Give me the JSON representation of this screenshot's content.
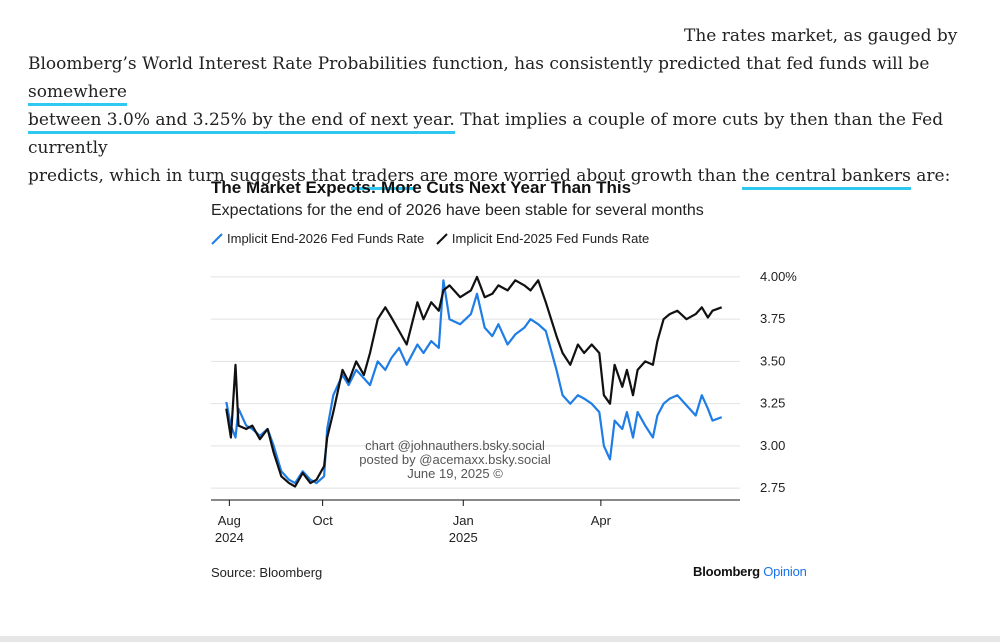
{
  "article": {
    "p1": "The rates market, as gauged by",
    "p2a": "Bloomberg’s World Interest Rate Probabilities function, has consistently predicted that fed funds will be ",
    "p2_hl": "somewhere",
    "p3_hl": "between 3.0% and 3.25% by the end of next year.",
    "p3b": " That implies a couple of more cuts by then than the Fed currently",
    "p4a": "predicts, which in turn suggests that ",
    "p4_hl1": "traders",
    "p4b": " are more worried about growth than ",
    "p4_hl2": "the central bankers",
    "p4c": " are:",
    "highlight_color": "#2ec8f0"
  },
  "chart_data": {
    "type": "line",
    "title": "The Market Expects: More Cuts Next Year Than This",
    "subtitle": "Expectations for the end of 2026 have been stable for several months",
    "y_ticks": [
      {
        "value": 4.0,
        "label": "4.00%"
      },
      {
        "value": 3.75,
        "label": "3.75"
      },
      {
        "value": 3.5,
        "label": "3.50"
      },
      {
        "value": 3.25,
        "label": "3.25"
      },
      {
        "value": 3.0,
        "label": "3.00"
      },
      {
        "value": 2.75,
        "label": "2.75"
      }
    ],
    "ylim": [
      2.68,
      4.1
    ],
    "x_ticks": [
      {
        "date": "2024-08-01",
        "line1": "Aug",
        "line2": "2024"
      },
      {
        "date": "2024-10-01",
        "line1": "Oct",
        "line2": ""
      },
      {
        "date": "2025-01-01",
        "line1": "Jan",
        "line2": "2025"
      },
      {
        "date": "2025-04-01",
        "line1": "Apr",
        "line2": ""
      }
    ],
    "xlim": [
      "2024-07-20",
      "2025-07-01"
    ],
    "grid": true,
    "legend_position": "top-left",
    "series": [
      {
        "name": "Implicit End-2026 Fed Funds Rate",
        "color": "#1f7de6",
        "points": [
          [
            "2024-07-30",
            3.26
          ],
          [
            "2024-08-02",
            3.12
          ],
          [
            "2024-08-05",
            3.05
          ],
          [
            "2024-08-07",
            3.22
          ],
          [
            "2024-08-12",
            3.12
          ],
          [
            "2024-08-16",
            3.1
          ],
          [
            "2024-08-21",
            3.06
          ],
          [
            "2024-08-26",
            3.1
          ],
          [
            "2024-08-30",
            3.0
          ],
          [
            "2024-09-04",
            2.85
          ],
          [
            "2024-09-09",
            2.8
          ],
          [
            "2024-09-13",
            2.78
          ],
          [
            "2024-09-18",
            2.85
          ],
          [
            "2024-09-23",
            2.8
          ],
          [
            "2024-09-27",
            2.78
          ],
          [
            "2024-10-02",
            2.82
          ],
          [
            "2024-10-04",
            3.1
          ],
          [
            "2024-10-08",
            3.3
          ],
          [
            "2024-10-14",
            3.42
          ],
          [
            "2024-10-18",
            3.36
          ],
          [
            "2024-10-23",
            3.45
          ],
          [
            "2024-10-28",
            3.4
          ],
          [
            "2024-11-01",
            3.36
          ],
          [
            "2024-11-06",
            3.5
          ],
          [
            "2024-11-11",
            3.45
          ],
          [
            "2024-11-15",
            3.52
          ],
          [
            "2024-11-20",
            3.58
          ],
          [
            "2024-11-25",
            3.48
          ],
          [
            "2024-12-02",
            3.6
          ],
          [
            "2024-12-06",
            3.55
          ],
          [
            "2024-12-11",
            3.62
          ],
          [
            "2024-12-16",
            3.58
          ],
          [
            "2024-12-19",
            3.98
          ],
          [
            "2024-12-23",
            3.75
          ],
          [
            "2024-12-30",
            3.72
          ],
          [
            "2025-01-06",
            3.78
          ],
          [
            "2025-01-10",
            3.9
          ],
          [
            "2025-01-15",
            3.7
          ],
          [
            "2025-01-20",
            3.65
          ],
          [
            "2025-01-24",
            3.72
          ],
          [
            "2025-01-30",
            3.6
          ],
          [
            "2025-02-04",
            3.66
          ],
          [
            "2025-02-10",
            3.7
          ],
          [
            "2025-02-14",
            3.75
          ],
          [
            "2025-02-19",
            3.72
          ],
          [
            "2025-02-24",
            3.68
          ],
          [
            "2025-03-03",
            3.45
          ],
          [
            "2025-03-07",
            3.3
          ],
          [
            "2025-03-12",
            3.25
          ],
          [
            "2025-03-17",
            3.3
          ],
          [
            "2025-03-21",
            3.28
          ],
          [
            "2025-03-26",
            3.25
          ],
          [
            "2025-03-31",
            3.2
          ],
          [
            "2025-04-03",
            3.0
          ],
          [
            "2025-04-07",
            2.92
          ],
          [
            "2025-04-10",
            3.15
          ],
          [
            "2025-04-15",
            3.1
          ],
          [
            "2025-04-18",
            3.2
          ],
          [
            "2025-04-22",
            3.05
          ],
          [
            "2025-04-25",
            3.2
          ],
          [
            "2025-04-30",
            3.12
          ],
          [
            "2025-05-05",
            3.05
          ],
          [
            "2025-05-08",
            3.18
          ],
          [
            "2025-05-12",
            3.25
          ],
          [
            "2025-05-16",
            3.28
          ],
          [
            "2025-05-21",
            3.3
          ],
          [
            "2025-05-27",
            3.24
          ],
          [
            "2025-06-02",
            3.18
          ],
          [
            "2025-06-06",
            3.3
          ],
          [
            "2025-06-10",
            3.22
          ],
          [
            "2025-06-13",
            3.15
          ],
          [
            "2025-06-19",
            3.17
          ]
        ]
      },
      {
        "name": "Implicit End-2025 Fed Funds Rate",
        "color": "#111111",
        "points": [
          [
            "2024-07-30",
            3.22
          ],
          [
            "2024-08-02",
            3.05
          ],
          [
            "2024-08-05",
            3.48
          ],
          [
            "2024-08-07",
            3.12
          ],
          [
            "2024-08-12",
            3.1
          ],
          [
            "2024-08-16",
            3.12
          ],
          [
            "2024-08-21",
            3.04
          ],
          [
            "2024-08-26",
            3.1
          ],
          [
            "2024-08-30",
            2.96
          ],
          [
            "2024-09-04",
            2.82
          ],
          [
            "2024-09-09",
            2.78
          ],
          [
            "2024-09-13",
            2.76
          ],
          [
            "2024-09-18",
            2.84
          ],
          [
            "2024-09-23",
            2.78
          ],
          [
            "2024-09-27",
            2.8
          ],
          [
            "2024-10-02",
            2.88
          ],
          [
            "2024-10-04",
            3.05
          ],
          [
            "2024-10-08",
            3.2
          ],
          [
            "2024-10-14",
            3.45
          ],
          [
            "2024-10-18",
            3.38
          ],
          [
            "2024-10-23",
            3.5
          ],
          [
            "2024-10-28",
            3.42
          ],
          [
            "2024-11-01",
            3.55
          ],
          [
            "2024-11-06",
            3.75
          ],
          [
            "2024-11-11",
            3.82
          ],
          [
            "2024-11-15",
            3.76
          ],
          [
            "2024-11-20",
            3.68
          ],
          [
            "2024-11-25",
            3.6
          ],
          [
            "2024-12-02",
            3.85
          ],
          [
            "2024-12-06",
            3.75
          ],
          [
            "2024-12-11",
            3.85
          ],
          [
            "2024-12-16",
            3.8
          ],
          [
            "2024-12-19",
            3.92
          ],
          [
            "2024-12-23",
            3.95
          ],
          [
            "2024-12-30",
            3.88
          ],
          [
            "2025-01-06",
            3.92
          ],
          [
            "2025-01-10",
            4.0
          ],
          [
            "2025-01-15",
            3.88
          ],
          [
            "2025-01-20",
            3.9
          ],
          [
            "2025-01-24",
            3.95
          ],
          [
            "2025-01-30",
            3.92
          ],
          [
            "2025-02-04",
            3.98
          ],
          [
            "2025-02-10",
            3.95
          ],
          [
            "2025-02-14",
            3.92
          ],
          [
            "2025-02-19",
            3.98
          ],
          [
            "2025-02-24",
            3.85
          ],
          [
            "2025-03-03",
            3.65
          ],
          [
            "2025-03-07",
            3.55
          ],
          [
            "2025-03-12",
            3.48
          ],
          [
            "2025-03-17",
            3.6
          ],
          [
            "2025-03-21",
            3.55
          ],
          [
            "2025-03-26",
            3.6
          ],
          [
            "2025-03-31",
            3.55
          ],
          [
            "2025-04-03",
            3.3
          ],
          [
            "2025-04-07",
            3.25
          ],
          [
            "2025-04-10",
            3.48
          ],
          [
            "2025-04-15",
            3.35
          ],
          [
            "2025-04-18",
            3.45
          ],
          [
            "2025-04-22",
            3.3
          ],
          [
            "2025-04-25",
            3.45
          ],
          [
            "2025-04-30",
            3.5
          ],
          [
            "2025-05-05",
            3.48
          ],
          [
            "2025-05-08",
            3.62
          ],
          [
            "2025-05-12",
            3.75
          ],
          [
            "2025-05-16",
            3.78
          ],
          [
            "2025-05-21",
            3.8
          ],
          [
            "2025-05-27",
            3.75
          ],
          [
            "2025-06-02",
            3.78
          ],
          [
            "2025-06-06",
            3.82
          ],
          [
            "2025-06-10",
            3.76
          ],
          [
            "2025-06-13",
            3.8
          ],
          [
            "2025-06-19",
            3.82
          ]
        ]
      }
    ],
    "watermark": [
      "chart @johnauthers.bsky.social",
      "posted by @acemaxx.bsky.social",
      "June 19, 2025 ©"
    ],
    "source": "Source: Bloomberg",
    "brand": {
      "name": "Bloomberg",
      "accent": "Opinion",
      "accent_color": "#1a73e8"
    }
  }
}
